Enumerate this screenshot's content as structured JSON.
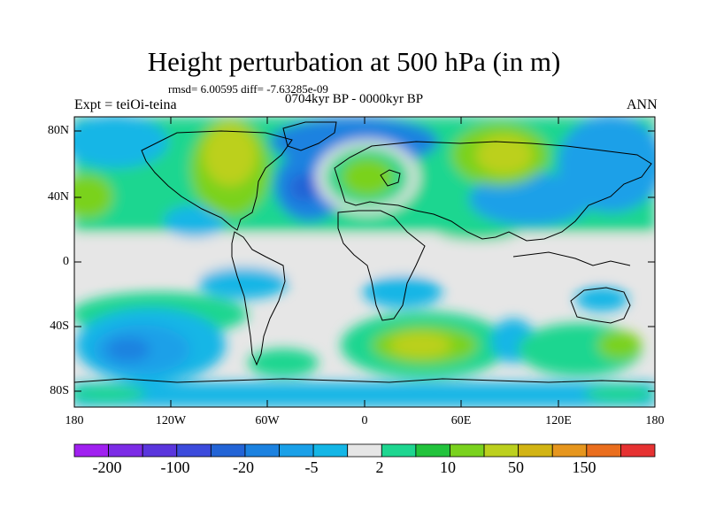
{
  "title": "Height perturbation at 500 hPa (in m)",
  "stats": "rmsd= 6.00595 diff= -7.63285e-09",
  "period": "0704kyr BP - 0000kyr BP",
  "experiment": "Expt = teiOi-teina",
  "season": "ANN",
  "lat_labels": [
    "80N",
    "40N",
    "0",
    "40S",
    "80S"
  ],
  "lon_labels": [
    "180",
    "120W",
    "60W",
    "0",
    "60E",
    "120E",
    "180"
  ],
  "colorbar": {
    "colors": [
      "#a020f0",
      "#7c2ce6",
      "#5a36dd",
      "#3c4bdc",
      "#2364d6",
      "#1c82e0",
      "#1aa0e8",
      "#14b6e6",
      "#e6e6e6",
      "#1ed690",
      "#22c33c",
      "#7ad21e",
      "#bcd01e",
      "#d2b414",
      "#e6961e",
      "#ea6e1e",
      "#e63232"
    ],
    "labels": [
      "-200",
      "-100",
      "-20",
      "-5",
      "2",
      "10",
      "50",
      "150"
    ]
  }
}
